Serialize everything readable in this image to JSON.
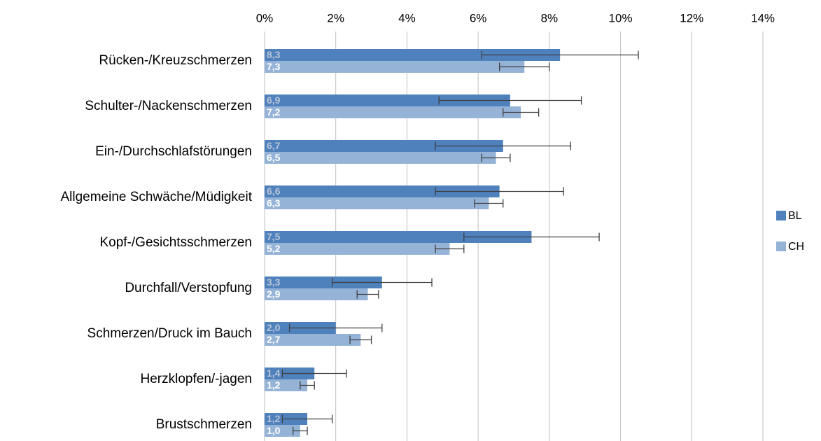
{
  "chart_data": {
    "type": "bar",
    "orientation": "horizontal",
    "categories": [
      "Rücken-/Kreuzschmerzen",
      "Schulter-/Nackenschmerzen",
      "Ein-/Durchschlafstörungen",
      "Allgemeine Schwäche/Müdigkeit",
      "Kopf-/Gesichtsschmerzen",
      "Durchfall/Verstopfung",
      "Schmerzen/Druck im Bauch",
      "Herzklopfen/-jagen",
      "Brustschmerzen"
    ],
    "series": [
      {
        "name": "BL",
        "color": "#4f81bd",
        "values": [
          8.3,
          6.9,
          6.7,
          6.6,
          7.5,
          3.3,
          2.0,
          1.4,
          1.2
        ],
        "value_labels": [
          "8,3",
          "6,9",
          "6,7",
          "6,6",
          "7,5",
          "3,3",
          "2,0",
          "1,4",
          "1,2"
        ],
        "errors": [
          2.2,
          2.0,
          1.9,
          1.8,
          1.9,
          1.4,
          1.3,
          0.9,
          0.7
        ]
      },
      {
        "name": "CH",
        "color": "#95b3d7",
        "values": [
          7.3,
          7.2,
          6.5,
          6.3,
          5.2,
          2.9,
          2.7,
          1.2,
          1.0
        ],
        "value_labels": [
          "7,3",
          "7,2",
          "6,5",
          "6,3",
          "5,2",
          "2,9",
          "2,7",
          "1,2",
          "1,0"
        ],
        "errors": [
          0.7,
          0.5,
          0.4,
          0.4,
          0.4,
          0.3,
          0.3,
          0.2,
          0.2
        ]
      }
    ],
    "xlim": [
      0,
      14
    ],
    "xticks": [
      {
        "value": 0,
        "label": "0%"
      },
      {
        "value": 2,
        "label": "2%"
      },
      {
        "value": 4,
        "label": "4%"
      },
      {
        "value": 6,
        "label": "6%"
      },
      {
        "value": 8,
        "label": "8%"
      },
      {
        "value": 10,
        "label": "10%"
      },
      {
        "value": 12,
        "label": "12%"
      },
      {
        "value": 14,
        "label": "14%"
      }
    ],
    "grid": true,
    "legend": "right"
  }
}
